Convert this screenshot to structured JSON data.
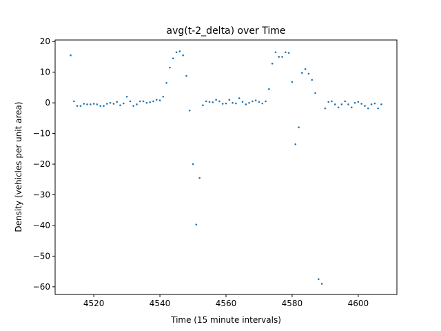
{
  "chart_data": {
    "type": "scatter",
    "title": "avg(t-2_delta) over Time",
    "xlabel": "Time (15 minute intervals)",
    "ylabel": "Density (vehicles per unit area)",
    "xlim": [
      4508.3,
      4611.7
    ],
    "ylim": [
      -62.5,
      20.5
    ],
    "xticks": [
      4520,
      4540,
      4560,
      4580,
      4600
    ],
    "yticks": [
      20,
      10,
      0,
      -10,
      -20,
      -30,
      -40,
      -50,
      -60
    ],
    "xtick_labels": [
      "4520",
      "4540",
      "4560",
      "4580",
      "4600"
    ],
    "ytick_labels": [
      "20",
      "10",
      "0",
      "−10",
      "−20",
      "−30",
      "−40",
      "−50",
      "−60"
    ],
    "grid": false,
    "marker_color": "#1f77b4",
    "series": [
      {
        "x": [
          4513,
          4514,
          4515,
          4516,
          4517,
          4518,
          4519,
          4520,
          4521,
          4522,
          4523,
          4524,
          4525,
          4526,
          4527,
          4528,
          4529,
          4530,
          4531,
          4532,
          4533,
          4534,
          4535,
          4536,
          4537,
          4538,
          4539,
          4540,
          4541,
          4542,
          4543,
          4544,
          4545,
          4546,
          4547,
          4548,
          4549,
          4550,
          4551,
          4552,
          4553,
          4554,
          4555,
          4556,
          4557,
          4558,
          4559,
          4560,
          4561,
          4562,
          4563,
          4564,
          4565,
          4566,
          4567,
          4568,
          4569,
          4570,
          4571,
          4572,
          4573,
          4574,
          4575,
          4576,
          4577,
          4578,
          4579,
          4580,
          4581,
          4582,
          4583,
          4584,
          4585,
          4586,
          4587,
          4588,
          4589,
          4590,
          4591,
          4592,
          4593,
          4594,
          4595,
          4596,
          4597,
          4598,
          4599,
          4600,
          4601,
          4602,
          4603,
          4604,
          4605,
          4606,
          4607
        ],
        "y": [
          15.5,
          0.5,
          -1,
          -1,
          -0.3,
          -0.5,
          -0.5,
          -0.3,
          -0.5,
          -1,
          -1,
          -0.3,
          0,
          -0.3,
          0.3,
          -0.8,
          -0.2,
          2,
          0.5,
          -1,
          -0.5,
          0.5,
          0.5,
          0,
          0.2,
          0.5,
          1,
          0.8,
          2,
          6.5,
          11.5,
          14.5,
          16.5,
          16.8,
          15.5,
          8.8,
          -2.5,
          -20,
          -39.7,
          -24.5,
          -0.8,
          0.5,
          0.3,
          0.2,
          1,
          0.5,
          -0.3,
          -0.2,
          1,
          0,
          -0.2,
          1.5,
          0.3,
          -0.5,
          0,
          0.5,
          0.8,
          0.3,
          -0.2,
          0.5,
          4.5,
          12.8,
          16.5,
          15,
          15,
          16.5,
          16.3,
          6.8,
          -13.5,
          -8,
          9.8,
          11,
          9.5,
          7.5,
          3.2,
          -57.5,
          -59,
          -1.8,
          0.3,
          0.5,
          -0.5,
          -1.5,
          -0.5,
          0.5,
          -0.5,
          -1.5,
          0,
          0.3,
          -0.3,
          -1,
          -1.8,
          -0.5,
          -0.2,
          -1.8,
          -0.5
        ]
      }
    ]
  }
}
